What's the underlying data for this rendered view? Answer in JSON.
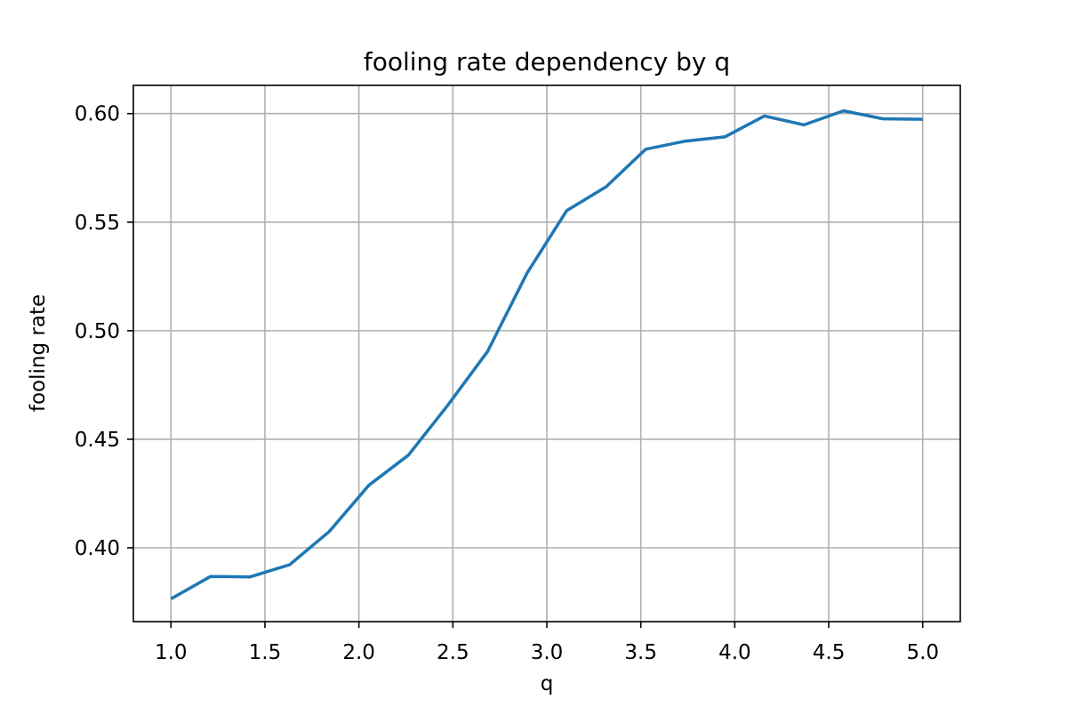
{
  "chart_data": {
    "type": "line",
    "title": "fooling rate dependency by q",
    "xlabel": "q",
    "ylabel": "fooling rate",
    "xlim": [
      0.8,
      5.2
    ],
    "ylim": [
      0.366,
      0.613
    ],
    "x_ticks": [
      1.0,
      1.5,
      2.0,
      2.5,
      3.0,
      3.5,
      4.0,
      4.5,
      5.0
    ],
    "x_tick_labels": [
      "1.0",
      "1.5",
      "2.0",
      "2.5",
      "3.0",
      "3.5",
      "4.0",
      "4.5",
      "5.0"
    ],
    "y_ticks": [
      0.4,
      0.45,
      0.5,
      0.55,
      0.6
    ],
    "y_tick_labels": [
      "0.40",
      "0.45",
      "0.50",
      "0.55",
      "0.60"
    ],
    "grid": true,
    "legend": "none",
    "series": [
      {
        "color": "#1f77b4",
        "x": [
          1.0,
          1.2105,
          1.4211,
          1.6316,
          1.8421,
          2.0526,
          2.2632,
          2.4737,
          2.6842,
          2.8947,
          3.1053,
          3.3158,
          3.5263,
          3.7368,
          3.9474,
          4.1579,
          4.3684,
          4.5789,
          4.7895,
          5.0
        ],
        "y": [
          0.3765,
          0.3868,
          0.3866,
          0.3922,
          0.4075,
          0.4288,
          0.4427,
          0.4658,
          0.4904,
          0.5265,
          0.5553,
          0.5663,
          0.5836,
          0.5873,
          0.5893,
          0.5989,
          0.5948,
          0.6013,
          0.5976,
          0.5974
        ]
      }
    ]
  }
}
